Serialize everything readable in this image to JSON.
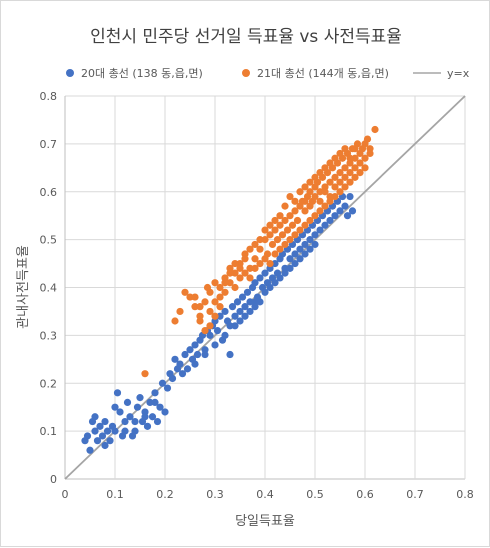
{
  "chart_data": {
    "type": "scatter",
    "title": "인천시 민주당 선거일 득표율 vs 사전득표율",
    "xlabel": "당일득표율",
    "ylabel": "관내사전득표율",
    "xlim": [
      0,
      0.8
    ],
    "ylim": [
      0,
      0.8
    ],
    "x_ticks": [
      "0",
      "0.1",
      "0.2",
      "0.3",
      "0.4",
      "0.5",
      "0.6",
      "0.7",
      "0.8"
    ],
    "y_ticks": [
      "0",
      "0.1",
      "0.2",
      "0.3",
      "0.4",
      "0.5",
      "0.6",
      "0.7",
      "0.8"
    ],
    "grid": true,
    "legend_position": "top",
    "reference_line": {
      "name": "y=x",
      "color": "#a5a5a5"
    },
    "series": [
      {
        "name": "20대 총선 (138 동,읍,면)",
        "color": "#4472c4",
        "points": [
          [
            0.04,
            0.08
          ],
          [
            0.045,
            0.09
          ],
          [
            0.05,
            0.06
          ],
          [
            0.055,
            0.12
          ],
          [
            0.06,
            0.13
          ],
          [
            0.06,
            0.1
          ],
          [
            0.065,
            0.08
          ],
          [
            0.07,
            0.11
          ],
          [
            0.075,
            0.09
          ],
          [
            0.08,
            0.12
          ],
          [
            0.085,
            0.1
          ],
          [
            0.09,
            0.08
          ],
          [
            0.095,
            0.11
          ],
          [
            0.1,
            0.15
          ],
          [
            0.1,
            0.1
          ],
          [
            0.105,
            0.18
          ],
          [
            0.11,
            0.14
          ],
          [
            0.115,
            0.09
          ],
          [
            0.12,
            0.12
          ],
          [
            0.125,
            0.16
          ],
          [
            0.13,
            0.13
          ],
          [
            0.135,
            0.09
          ],
          [
            0.14,
            0.1
          ],
          [
            0.145,
            0.15
          ],
          [
            0.15,
            0.17
          ],
          [
            0.155,
            0.12
          ],
          [
            0.16,
            0.14
          ],
          [
            0.165,
            0.11
          ],
          [
            0.17,
            0.16
          ],
          [
            0.175,
            0.13
          ],
          [
            0.18,
            0.18
          ],
          [
            0.185,
            0.12
          ],
          [
            0.19,
            0.15
          ],
          [
            0.195,
            0.2
          ],
          [
            0.2,
            0.14
          ],
          [
            0.205,
            0.19
          ],
          [
            0.21,
            0.22
          ],
          [
            0.215,
            0.21
          ],
          [
            0.22,
            0.25
          ],
          [
            0.225,
            0.23
          ],
          [
            0.23,
            0.24
          ],
          [
            0.235,
            0.22
          ],
          [
            0.24,
            0.26
          ],
          [
            0.245,
            0.23
          ],
          [
            0.25,
            0.27
          ],
          [
            0.255,
            0.25
          ],
          [
            0.26,
            0.28
          ],
          [
            0.265,
            0.26
          ],
          [
            0.27,
            0.29
          ],
          [
            0.275,
            0.3
          ],
          [
            0.28,
            0.27
          ],
          [
            0.285,
            0.31
          ],
          [
            0.29,
            0.3
          ],
          [
            0.295,
            0.32
          ],
          [
            0.3,
            0.33
          ],
          [
            0.305,
            0.31
          ],
          [
            0.31,
            0.34
          ],
          [
            0.315,
            0.29
          ],
          [
            0.32,
            0.35
          ],
          [
            0.325,
            0.33
          ],
          [
            0.33,
            0.26
          ],
          [
            0.335,
            0.36
          ],
          [
            0.34,
            0.34
          ],
          [
            0.345,
            0.37
          ],
          [
            0.35,
            0.35
          ],
          [
            0.355,
            0.38
          ],
          [
            0.36,
            0.36
          ],
          [
            0.365,
            0.39
          ],
          [
            0.37,
            0.37
          ],
          [
            0.375,
            0.4
          ],
          [
            0.38,
            0.41
          ],
          [
            0.385,
            0.38
          ],
          [
            0.39,
            0.42
          ],
          [
            0.395,
            0.4
          ],
          [
            0.4,
            0.43
          ],
          [
            0.405,
            0.41
          ],
          [
            0.41,
            0.44
          ],
          [
            0.415,
            0.42
          ],
          [
            0.42,
            0.45
          ],
          [
            0.425,
            0.43
          ],
          [
            0.43,
            0.46
          ],
          [
            0.435,
            0.47
          ],
          [
            0.44,
            0.44
          ],
          [
            0.445,
            0.48
          ],
          [
            0.45,
            0.46
          ],
          [
            0.455,
            0.49
          ],
          [
            0.46,
            0.47
          ],
          [
            0.465,
            0.5
          ],
          [
            0.47,
            0.48
          ],
          [
            0.475,
            0.51
          ],
          [
            0.48,
            0.49
          ],
          [
            0.485,
            0.52
          ],
          [
            0.49,
            0.5
          ],
          [
            0.495,
            0.53
          ],
          [
            0.5,
            0.51
          ],
          [
            0.505,
            0.54
          ],
          [
            0.51,
            0.52
          ],
          [
            0.515,
            0.55
          ],
          [
            0.52,
            0.53
          ],
          [
            0.525,
            0.56
          ],
          [
            0.53,
            0.54
          ],
          [
            0.535,
            0.57
          ],
          [
            0.54,
            0.55
          ],
          [
            0.545,
            0.58
          ],
          [
            0.55,
            0.56
          ],
          [
            0.555,
            0.59
          ],
          [
            0.56,
            0.57
          ],
          [
            0.565,
            0.55
          ],
          [
            0.57,
            0.59
          ],
          [
            0.575,
            0.56
          ],
          [
            0.33,
            0.32
          ],
          [
            0.35,
            0.33
          ],
          [
            0.37,
            0.35
          ],
          [
            0.38,
            0.36
          ],
          [
            0.39,
            0.37
          ],
          [
            0.4,
            0.39
          ],
          [
            0.41,
            0.4
          ],
          [
            0.42,
            0.41
          ],
          [
            0.43,
            0.42
          ],
          [
            0.44,
            0.43
          ],
          [
            0.45,
            0.44
          ],
          [
            0.46,
            0.45
          ],
          [
            0.47,
            0.46
          ],
          [
            0.48,
            0.47
          ],
          [
            0.49,
            0.48
          ],
          [
            0.5,
            0.49
          ],
          [
            0.26,
            0.24
          ],
          [
            0.28,
            0.26
          ],
          [
            0.3,
            0.28
          ],
          [
            0.32,
            0.3
          ],
          [
            0.34,
            0.32
          ],
          [
            0.36,
            0.34
          ],
          [
            0.38,
            0.37
          ],
          [
            0.12,
            0.1
          ],
          [
            0.14,
            0.12
          ],
          [
            0.16,
            0.13
          ],
          [
            0.18,
            0.16
          ],
          [
            0.08,
            0.07
          ]
        ]
      },
      {
        "name": "21대 총선 (144개 동,읍,면)",
        "color": "#ed7d31",
        "points": [
          [
            0.16,
            0.22
          ],
          [
            0.24,
            0.39
          ],
          [
            0.25,
            0.38
          ],
          [
            0.26,
            0.36
          ],
          [
            0.27,
            0.33
          ],
          [
            0.28,
            0.37
          ],
          [
            0.285,
            0.4
          ],
          [
            0.29,
            0.35
          ],
          [
            0.3,
            0.41
          ],
          [
            0.31,
            0.38
          ],
          [
            0.32,
            0.42
          ],
          [
            0.33,
            0.44
          ],
          [
            0.34,
            0.43
          ],
          [
            0.35,
            0.45
          ],
          [
            0.36,
            0.47
          ],
          [
            0.37,
            0.44
          ],
          [
            0.38,
            0.46
          ],
          [
            0.39,
            0.48
          ],
          [
            0.4,
            0.5
          ],
          [
            0.405,
            0.47
          ],
          [
            0.41,
            0.51
          ],
          [
            0.415,
            0.49
          ],
          [
            0.42,
            0.52
          ],
          [
            0.425,
            0.5
          ],
          [
            0.43,
            0.53
          ],
          [
            0.435,
            0.51
          ],
          [
            0.44,
            0.54
          ],
          [
            0.445,
            0.52
          ],
          [
            0.45,
            0.55
          ],
          [
            0.455,
            0.53
          ],
          [
            0.46,
            0.56
          ],
          [
            0.465,
            0.54
          ],
          [
            0.47,
            0.57
          ],
          [
            0.475,
            0.58
          ],
          [
            0.48,
            0.56
          ],
          [
            0.485,
            0.59
          ],
          [
            0.49,
            0.6
          ],
          [
            0.495,
            0.58
          ],
          [
            0.5,
            0.61
          ],
          [
            0.505,
            0.62
          ],
          [
            0.51,
            0.6
          ],
          [
            0.515,
            0.63
          ],
          [
            0.52,
            0.61
          ],
          [
            0.525,
            0.64
          ],
          [
            0.53,
            0.62
          ],
          [
            0.535,
            0.65
          ],
          [
            0.54,
            0.63
          ],
          [
            0.545,
            0.66
          ],
          [
            0.55,
            0.64
          ],
          [
            0.555,
            0.67
          ],
          [
            0.56,
            0.65
          ],
          [
            0.565,
            0.68
          ],
          [
            0.57,
            0.66
          ],
          [
            0.575,
            0.69
          ],
          [
            0.58,
            0.67
          ],
          [
            0.585,
            0.7
          ],
          [
            0.59,
            0.68
          ],
          [
            0.595,
            0.69
          ],
          [
            0.6,
            0.7
          ],
          [
            0.605,
            0.71
          ],
          [
            0.61,
            0.69
          ],
          [
            0.62,
            0.73
          ],
          [
            0.22,
            0.33
          ],
          [
            0.23,
            0.35
          ],
          [
            0.26,
            0.38
          ],
          [
            0.27,
            0.36
          ],
          [
            0.29,
            0.39
          ],
          [
            0.3,
            0.37
          ],
          [
            0.31,
            0.4
          ],
          [
            0.32,
            0.39
          ],
          [
            0.33,
            0.41
          ],
          [
            0.34,
            0.4
          ],
          [
            0.35,
            0.42
          ],
          [
            0.36,
            0.43
          ],
          [
            0.37,
            0.42
          ],
          [
            0.38,
            0.44
          ],
          [
            0.39,
            0.45
          ],
          [
            0.4,
            0.46
          ],
          [
            0.41,
            0.45
          ],
          [
            0.42,
            0.47
          ],
          [
            0.43,
            0.48
          ],
          [
            0.44,
            0.49
          ],
          [
            0.45,
            0.5
          ],
          [
            0.46,
            0.51
          ],
          [
            0.47,
            0.52
          ],
          [
            0.48,
            0.53
          ],
          [
            0.49,
            0.54
          ],
          [
            0.5,
            0.55
          ],
          [
            0.51,
            0.56
          ],
          [
            0.52,
            0.57
          ],
          [
            0.53,
            0.58
          ],
          [
            0.54,
            0.59
          ],
          [
            0.55,
            0.6
          ],
          [
            0.56,
            0.61
          ],
          [
            0.57,
            0.62
          ],
          [
            0.58,
            0.63
          ],
          [
            0.59,
            0.64
          ],
          [
            0.6,
            0.65
          ],
          [
            0.44,
            0.57
          ],
          [
            0.45,
            0.59
          ],
          [
            0.46,
            0.58
          ],
          [
            0.47,
            0.6
          ],
          [
            0.48,
            0.61
          ],
          [
            0.49,
            0.62
          ],
          [
            0.5,
            0.63
          ],
          [
            0.51,
            0.64
          ],
          [
            0.52,
            0.65
          ],
          [
            0.53,
            0.66
          ],
          [
            0.54,
            0.67
          ],
          [
            0.55,
            0.68
          ],
          [
            0.56,
            0.69
          ],
          [
            0.43,
            0.55
          ],
          [
            0.42,
            0.54
          ],
          [
            0.41,
            0.53
          ],
          [
            0.4,
            0.52
          ],
          [
            0.39,
            0.5
          ],
          [
            0.38,
            0.49
          ],
          [
            0.37,
            0.48
          ],
          [
            0.36,
            0.46
          ],
          [
            0.35,
            0.44
          ],
          [
            0.34,
            0.45
          ],
          [
            0.33,
            0.43
          ],
          [
            0.32,
            0.41
          ],
          [
            0.31,
            0.36
          ],
          [
            0.3,
            0.34
          ],
          [
            0.29,
            0.32
          ],
          [
            0.28,
            0.31
          ],
          [
            0.27,
            0.34
          ],
          [
            0.48,
            0.58
          ],
          [
            0.49,
            0.57
          ],
          [
            0.5,
            0.59
          ],
          [
            0.51,
            0.58
          ],
          [
            0.52,
            0.6
          ],
          [
            0.53,
            0.59
          ],
          [
            0.54,
            0.61
          ],
          [
            0.55,
            0.62
          ],
          [
            0.56,
            0.63
          ],
          [
            0.57,
            0.64
          ],
          [
            0.58,
            0.65
          ],
          [
            0.59,
            0.66
          ],
          [
            0.6,
            0.67
          ],
          [
            0.61,
            0.68
          ],
          [
            0.57,
            0.67
          ],
          [
            0.58,
            0.69
          ]
        ]
      }
    ]
  }
}
